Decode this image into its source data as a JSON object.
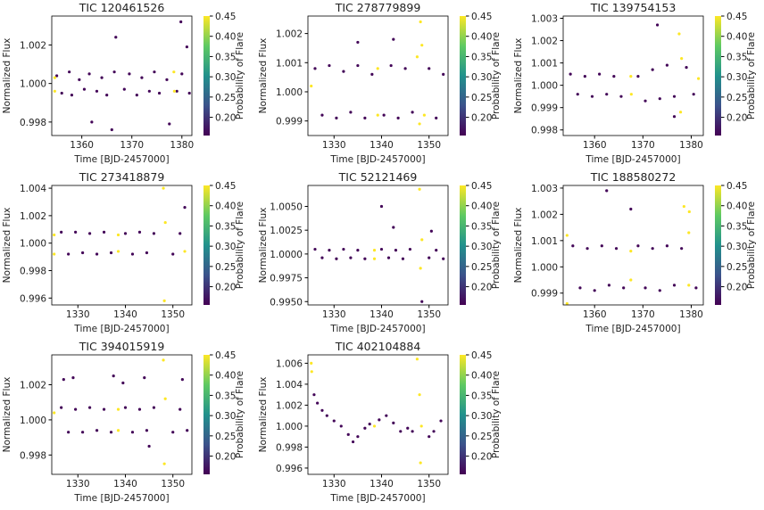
{
  "chart_data": [
    {
      "type": "scatter",
      "title": "TIC 120461526",
      "x_label": "Time [BJD-2457000]",
      "y_label": "Normalized Flux",
      "colorbar_label": "Probability of Flare",
      "xlim": [
        1354,
        1382
      ],
      "ylim": [
        0.9973,
        1.0035
      ],
      "xticks": [
        1360,
        1370,
        1380
      ],
      "yticks": [
        0.998,
        {
          "value": 1.0,
          "label": "1.000"
        },
        1.002
      ],
      "clim": [
        0.155,
        0.45
      ],
      "cticks": [
        {
          "value": 0.2,
          "label": "0.20"
        },
        0.25,
        {
          "value": 0.3,
          "label": "0.30"
        },
        0.35,
        {
          "value": 0.4,
          "label": "0.40"
        },
        0.45
      ],
      "x": [
        1355,
        1356,
        1357.5,
        1358,
        1359.5,
        1360.5,
        1361.5,
        1363,
        1364,
        1365,
        1366.5,
        1368.5,
        1369.5,
        1371,
        1372,
        1373.5,
        1374.5,
        1375.5,
        1377,
        1379,
        1380,
        1381.5,
        1354.6,
        1354.6,
        1378.4,
        1378.5,
        1366.8,
        1379.8,
        1381,
        1377.5,
        1366,
        1362
      ],
      "y": [
        1.0004,
        0.9995,
        1.0006,
        0.9994,
        1.0002,
        0.9997,
        1.0005,
        0.9996,
        1.0003,
        0.9994,
        1.0006,
        0.9997,
        1.0005,
        0.9994,
        1.0003,
        0.9996,
        1.0006,
        0.9995,
        1.0002,
        0.9996,
        1.0005,
        0.9995,
        1.0003,
        0.9996,
        1.0006,
        0.9996,
        1.0024,
        1.0032,
        1.0019,
        0.9979,
        0.9976,
        0.998
      ],
      "c": [
        0.16,
        0.16,
        0.16,
        0.16,
        0.16,
        0.16,
        0.16,
        0.16,
        0.16,
        0.16,
        0.16,
        0.16,
        0.16,
        0.16,
        0.16,
        0.16,
        0.16,
        0.16,
        0.16,
        0.16,
        0.16,
        0.16,
        0.45,
        0.45,
        0.45,
        0.45,
        0.16,
        0.16,
        0.16,
        0.16,
        0.16,
        0.16
      ]
    },
    {
      "type": "scatter",
      "title": "TIC 278779899",
      "x_label": "Time [BJD-2457000]",
      "y_label": "Normalized Flux",
      "colorbar_label": "Probability of Flare",
      "xlim": [
        1324.5,
        1354
      ],
      "ylim": [
        0.9985,
        1.0026
      ],
      "xticks": [
        1330,
        1340,
        1350
      ],
      "yticks": [
        0.999,
        {
          "value": 1.0,
          "label": "1.000"
        },
        1.001,
        1.002
      ],
      "clim": [
        0.155,
        0.45
      ],
      "cticks": [
        {
          "value": 0.2,
          "label": "0.20"
        },
        0.25,
        {
          "value": 0.3,
          "label": "0.30"
        },
        0.35,
        {
          "value": 0.4,
          "label": "0.40"
        },
        0.45
      ],
      "x": [
        1326,
        1327.5,
        1329,
        1330.5,
        1332,
        1333.5,
        1335,
        1336.5,
        1338,
        1340.5,
        1342,
        1343.5,
        1345,
        1346.5,
        1350,
        1351.5,
        1353,
        1325.2,
        1339.2,
        1339.2,
        1347.5,
        1348,
        1348.5,
        1349,
        1348.2,
        1335,
        1342.5
      ],
      "y": [
        1.0008,
        0.9992,
        1.0009,
        0.9991,
        1.0007,
        0.9993,
        1.0009,
        0.9991,
        1.0006,
        0.9992,
        1.0009,
        0.9991,
        1.0008,
        0.9993,
        1.0008,
        0.9991,
        1.0006,
        1.0002,
        1.0008,
        0.9992,
        1.0012,
        0.9989,
        1.0016,
        0.9992,
        1.0024,
        1.0017,
        1.0018
      ],
      "c": [
        0.16,
        0.16,
        0.16,
        0.16,
        0.16,
        0.16,
        0.16,
        0.16,
        0.16,
        0.16,
        0.16,
        0.16,
        0.16,
        0.16,
        0.16,
        0.16,
        0.16,
        0.45,
        0.45,
        0.45,
        0.45,
        0.45,
        0.45,
        0.45,
        0.45,
        0.16,
        0.16
      ]
    },
    {
      "type": "scatter",
      "title": "TIC 139754153",
      "x_label": "Time [BJD-2457000]",
      "y_label": "Normalized Flux",
      "colorbar_label": "Probability of Flare",
      "xlim": [
        1353.5,
        1382.5
      ],
      "ylim": [
        0.99775,
        1.0031
      ],
      "xticks": [
        1360,
        1370,
        1380
      ],
      "yticks": [
        0.998,
        0.999,
        {
          "value": 1.0,
          "label": "1.000"
        },
        1.001,
        1.002,
        1.003
      ],
      "clim": [
        0.155,
        0.45
      ],
      "cticks": [
        {
          "value": 0.2,
          "label": "0.20"
        },
        0.25,
        {
          "value": 0.3,
          "label": "0.30"
        },
        0.35,
        {
          "value": 0.4,
          "label": "0.40"
        },
        0.45
      ],
      "x": [
        1355,
        1356.5,
        1358,
        1359.5,
        1361,
        1362.5,
        1364,
        1365.5,
        1369,
        1370.5,
        1372,
        1373.5,
        1375,
        1376.5,
        1379,
        1380.5,
        1367.5,
        1367.6,
        1377.5,
        1377.8,
        1378,
        1381.5,
        1373,
        1376.5
      ],
      "y": [
        1.0005,
        0.9996,
        1.0004,
        0.9995,
        1.0005,
        0.9996,
        1.0004,
        0.9995,
        1.0004,
        0.9993,
        1.0007,
        0.9994,
        1.0009,
        0.9995,
        1.0008,
        0.9996,
        1.0004,
        0.9996,
        1.0023,
        0.9988,
        1.0012,
        1.0003,
        1.0027,
        0.9986
      ],
      "c": [
        0.16,
        0.16,
        0.16,
        0.16,
        0.16,
        0.16,
        0.16,
        0.16,
        0.16,
        0.16,
        0.16,
        0.16,
        0.16,
        0.16,
        0.16,
        0.16,
        0.45,
        0.45,
        0.45,
        0.45,
        0.45,
        0.45,
        0.16,
        0.16
      ]
    },
    {
      "type": "scatter",
      "title": "TIC 273418879",
      "x_label": "Time [BJD-2457000]",
      "y_label": "Normalized Flux",
      "colorbar_label": "Probability of Flare",
      "xlim": [
        1324.5,
        1354
      ],
      "ylim": [
        0.9955,
        1.0042
      ],
      "xticks": [
        1330,
        1340,
        1350
      ],
      "yticks": [
        0.996,
        0.998,
        {
          "value": 1.0,
          "label": "1.000"
        },
        1.002,
        1.004
      ],
      "clim": [
        0.155,
        0.45
      ],
      "cticks": [
        {
          "value": 0.2,
          "label": "0.20"
        },
        0.25,
        {
          "value": 0.3,
          "label": "0.30"
        },
        0.35,
        {
          "value": 0.4,
          "label": "0.40"
        },
        0.45
      ],
      "x": [
        1326.5,
        1328,
        1329.5,
        1331,
        1332.5,
        1334,
        1335.5,
        1337,
        1340,
        1341.5,
        1343,
        1344.5,
        1346,
        1350,
        1351.5,
        1325,
        1325,
        1338.5,
        1338.5,
        1348,
        1348.2,
        1348.4,
        1352.5,
        1352.5
      ],
      "y": [
        1.0008,
        0.9992,
        1.0008,
        0.9993,
        1.0007,
        0.9992,
        1.0008,
        0.9993,
        1.0007,
        0.9992,
        1.0008,
        0.9993,
        1.0007,
        0.9992,
        1.0007,
        1.0006,
        0.9992,
        1.0006,
        0.9994,
        1.004,
        0.9958,
        1.0015,
        0.9994,
        1.0026
      ],
      "c": [
        0.16,
        0.16,
        0.16,
        0.16,
        0.16,
        0.16,
        0.16,
        0.16,
        0.16,
        0.16,
        0.16,
        0.16,
        0.16,
        0.16,
        0.16,
        0.45,
        0.45,
        0.45,
        0.45,
        0.45,
        0.45,
        0.45,
        0.45,
        0.16
      ]
    },
    {
      "type": "scatter",
      "title": "TIC 52121469",
      "x_label": "Time [BJD-2457000]",
      "y_label": "Normalized Flux",
      "colorbar_label": "Probability of Flare",
      "xlim": [
        1324.5,
        1354
      ],
      "ylim": [
        0.99465,
        1.0072
      ],
      "xticks": [
        1330,
        1340,
        1350
      ],
      "yticks": [
        {
          "value": 0.995,
          "label": "0.9950"
        },
        0.9975,
        {
          "value": 1.0,
          "label": "1.0000"
        },
        1.0025,
        {
          "value": 1.005,
          "label": "1.0050"
        }
      ],
      "clim": [
        0.155,
        0.45
      ],
      "cticks": [
        {
          "value": 0.2,
          "label": "0.20"
        },
        0.25,
        {
          "value": 0.3,
          "label": "0.30"
        },
        0.35,
        {
          "value": 0.4,
          "label": "0.40"
        },
        0.45
      ],
      "x": [
        1326,
        1327.5,
        1329,
        1330.5,
        1332,
        1333.5,
        1335,
        1336.5,
        1340,
        1341.5,
        1343,
        1344.5,
        1346,
        1350,
        1351.5,
        1353,
        1338.5,
        1338.5,
        1348,
        1348.2,
        1348.5,
        1340,
        1342.5,
        1350.5,
        1348.5
      ],
      "y": [
        1.0005,
        0.9996,
        1.0004,
        0.9995,
        1.0005,
        0.9996,
        1.0004,
        0.9995,
        1.0005,
        0.9996,
        1.0004,
        0.9995,
        1.0005,
        0.9996,
        1.0004,
        0.9995,
        1.0004,
        0.9995,
        1.0068,
        0.9985,
        1.0015,
        1.005,
        1.0028,
        1.0024,
        0.995
      ],
      "c": [
        0.16,
        0.16,
        0.16,
        0.16,
        0.16,
        0.16,
        0.16,
        0.16,
        0.16,
        0.16,
        0.16,
        0.16,
        0.16,
        0.16,
        0.16,
        0.16,
        0.45,
        0.45,
        0.45,
        0.45,
        0.45,
        0.16,
        0.16,
        0.16,
        0.16
      ]
    },
    {
      "type": "scatter",
      "title": "TIC 188580272",
      "x_label": "Time [BJD-2457000]",
      "y_label": "Normalized Flux",
      "colorbar_label": "Probability of Flare",
      "xlim": [
        1353.5,
        1382.5
      ],
      "ylim": [
        0.99855,
        1.0031
      ],
      "xticks": [
        1360,
        1370,
        1380
      ],
      "yticks": [
        0.999,
        {
          "value": 1.0,
          "label": "1.000"
        },
        1.001,
        1.002,
        1.003
      ],
      "clim": [
        0.155,
        0.45
      ],
      "cticks": [
        {
          "value": 0.2,
          "label": "0.20"
        },
        0.25,
        {
          "value": 0.3,
          "label": "0.30"
        },
        0.35,
        {
          "value": 0.4,
          "label": "0.40"
        },
        0.45
      ],
      "x": [
        1355.5,
        1357,
        1358.5,
        1360,
        1361.5,
        1363,
        1364.5,
        1366,
        1369,
        1370.5,
        1372,
        1373.5,
        1375,
        1376.5,
        1378,
        1381,
        1354.3,
        1354.3,
        1367.5,
        1367.5,
        1379.5,
        1379.5,
        1362.5,
        1367.5,
        1378.5,
        1379.6
      ],
      "y": [
        1.0008,
        0.9992,
        1.0007,
        0.9991,
        1.0008,
        0.9993,
        1.0007,
        0.9992,
        1.0008,
        0.9992,
        1.0007,
        0.9991,
        1.0008,
        0.9993,
        1.0007,
        0.9992,
        1.0012,
        0.9986,
        1.0006,
        0.9995,
        1.0013,
        0.9993,
        1.0029,
        1.0022,
        1.0023,
        1.0021
      ],
      "c": [
        0.16,
        0.16,
        0.16,
        0.16,
        0.16,
        0.16,
        0.16,
        0.16,
        0.16,
        0.16,
        0.16,
        0.16,
        0.16,
        0.16,
        0.16,
        0.16,
        0.45,
        0.45,
        0.45,
        0.45,
        0.45,
        0.45,
        0.16,
        0.16,
        0.45,
        0.45
      ]
    },
    {
      "type": "scatter",
      "title": "TIC 394015919",
      "x_label": "Time [BJD-2457000]",
      "y_label": "Normalized Flux",
      "colorbar_label": "Probability of Flare",
      "xlim": [
        1324.5,
        1354
      ],
      "ylim": [
        0.9969,
        1.0037
      ],
      "xticks": [
        1330,
        1340,
        1350
      ],
      "yticks": [
        0.998,
        {
          "value": 1.0,
          "label": "1.000"
        },
        1.002
      ],
      "clim": [
        0.155,
        0.45
      ],
      "cticks": [
        {
          "value": 0.2,
          "label": "0.20"
        },
        0.25,
        {
          "value": 0.3,
          "label": "0.30"
        },
        0.35,
        {
          "value": 0.4,
          "label": "0.40"
        },
        0.45
      ],
      "x": [
        1326.5,
        1328,
        1329.5,
        1331,
        1332.5,
        1334,
        1335.5,
        1337,
        1340,
        1341.5,
        1343,
        1344.5,
        1346,
        1350,
        1351.5,
        1353,
        1325,
        1338.5,
        1338.5,
        1348,
        1348.2,
        1348.4,
        1327,
        1329,
        1337.5,
        1339.5,
        1344,
        1352,
        1345
      ],
      "y": [
        1.0007,
        0.9993,
        1.0006,
        0.9993,
        1.0007,
        0.9994,
        1.0006,
        0.9993,
        1.0007,
        0.9993,
        1.0006,
        0.9994,
        1.0007,
        0.9993,
        1.0006,
        0.9994,
        1.0004,
        1.0006,
        0.9994,
        1.0034,
        0.9975,
        1.0012,
        1.0023,
        1.0024,
        1.0025,
        1.0021,
        1.0024,
        1.0023,
        0.9985
      ],
      "c": [
        0.16,
        0.16,
        0.16,
        0.16,
        0.16,
        0.16,
        0.16,
        0.16,
        0.16,
        0.16,
        0.16,
        0.16,
        0.16,
        0.16,
        0.16,
        0.16,
        0.45,
        0.45,
        0.45,
        0.45,
        0.45,
        0.45,
        0.16,
        0.16,
        0.16,
        0.16,
        0.16,
        0.16,
        0.16
      ]
    },
    {
      "type": "scatter",
      "title": "TIC 402104884",
      "x_label": "Time [BJD-2457000]",
      "y_label": "Normalized Flux",
      "colorbar_label": "Probability of Flare",
      "xlim": [
        1324.5,
        1354
      ],
      "ylim": [
        0.9954,
        1.0068
      ],
      "xticks": [
        1330,
        1340,
        1350
      ],
      "yticks": [
        0.996,
        0.998,
        {
          "value": 1.0,
          "label": "1.000"
        },
        1.002,
        1.004,
        1.006
      ],
      "clim": [
        0.155,
        0.45
      ],
      "cticks": [
        {
          "value": 0.2,
          "label": "0.20"
        },
        0.25,
        {
          "value": 0.3,
          "label": "0.30"
        },
        0.35,
        {
          "value": 0.4,
          "label": "0.40"
        },
        0.45
      ],
      "x": [
        1325.2,
        1325.3,
        1325.8,
        1326.5,
        1327.5,
        1328.5,
        1330,
        1331.5,
        1333,
        1334,
        1335,
        1336.5,
        1337.5,
        1338.5,
        1339.5,
        1341,
        1342.5,
        1344,
        1345.5,
        1346.5,
        1348,
        1348.2,
        1348.4,
        1350,
        1351,
        1352.5,
        1347.5
      ],
      "y": [
        1.006,
        1.0052,
        1.003,
        1.0022,
        1.0015,
        1.001,
        1.0005,
        1.0,
        0.9992,
        0.9985,
        0.999,
        0.9998,
        1.0002,
        1.0,
        1.0006,
        1.001,
        1.0003,
        0.9995,
        0.9998,
        0.9995,
        1.003,
        0.9965,
        1.0,
        0.999,
        0.9995,
        1.0005,
        1.0064
      ],
      "c": [
        0.45,
        0.45,
        0.16,
        0.16,
        0.16,
        0.16,
        0.16,
        0.16,
        0.16,
        0.16,
        0.16,
        0.16,
        0.16,
        0.45,
        0.16,
        0.16,
        0.16,
        0.16,
        0.16,
        0.16,
        0.45,
        0.45,
        0.45,
        0.16,
        0.16,
        0.16,
        0.45
      ]
    }
  ]
}
